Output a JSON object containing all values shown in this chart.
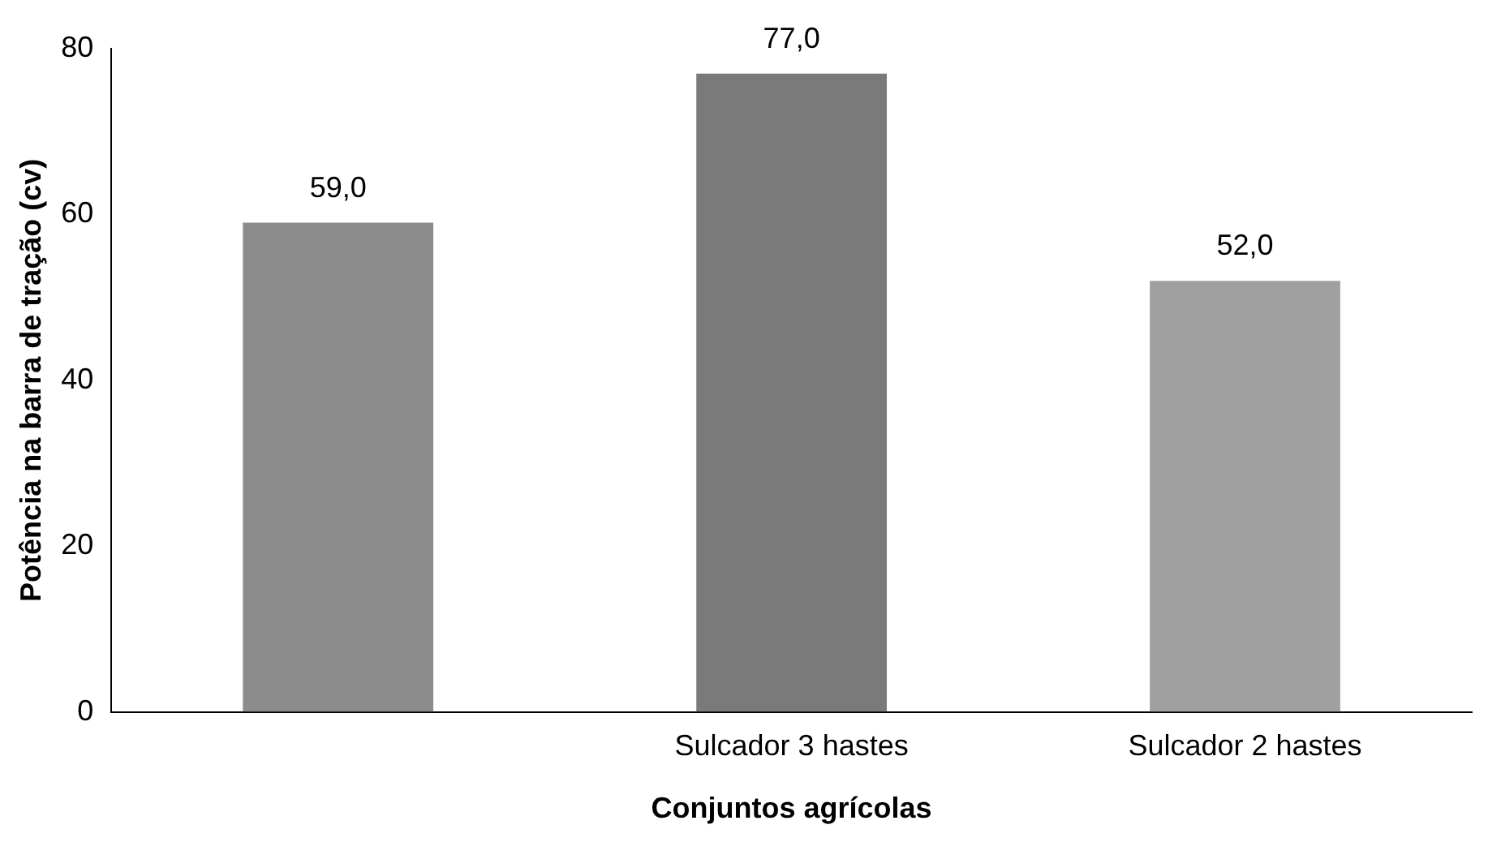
{
  "chart_data": {
    "type": "bar",
    "xlabel": "Conjuntos agrícolas",
    "ylabel": "Potência na barra de tração (cv)",
    "categories": [
      null,
      "Sulcador 3 hastes",
      "Sulcador 2 hastes"
    ],
    "values": [
      59,
      77,
      52
    ],
    "value_labels": [
      "59,0",
      "77,0",
      "52,0"
    ],
    "colors": [
      "#8c8c8c",
      "#7a7a7a",
      "#a0a0a0"
    ],
    "ylim": [
      0,
      80
    ],
    "yticks": [
      0,
      20,
      40,
      60,
      80
    ],
    "grid": false,
    "legend": false
  }
}
